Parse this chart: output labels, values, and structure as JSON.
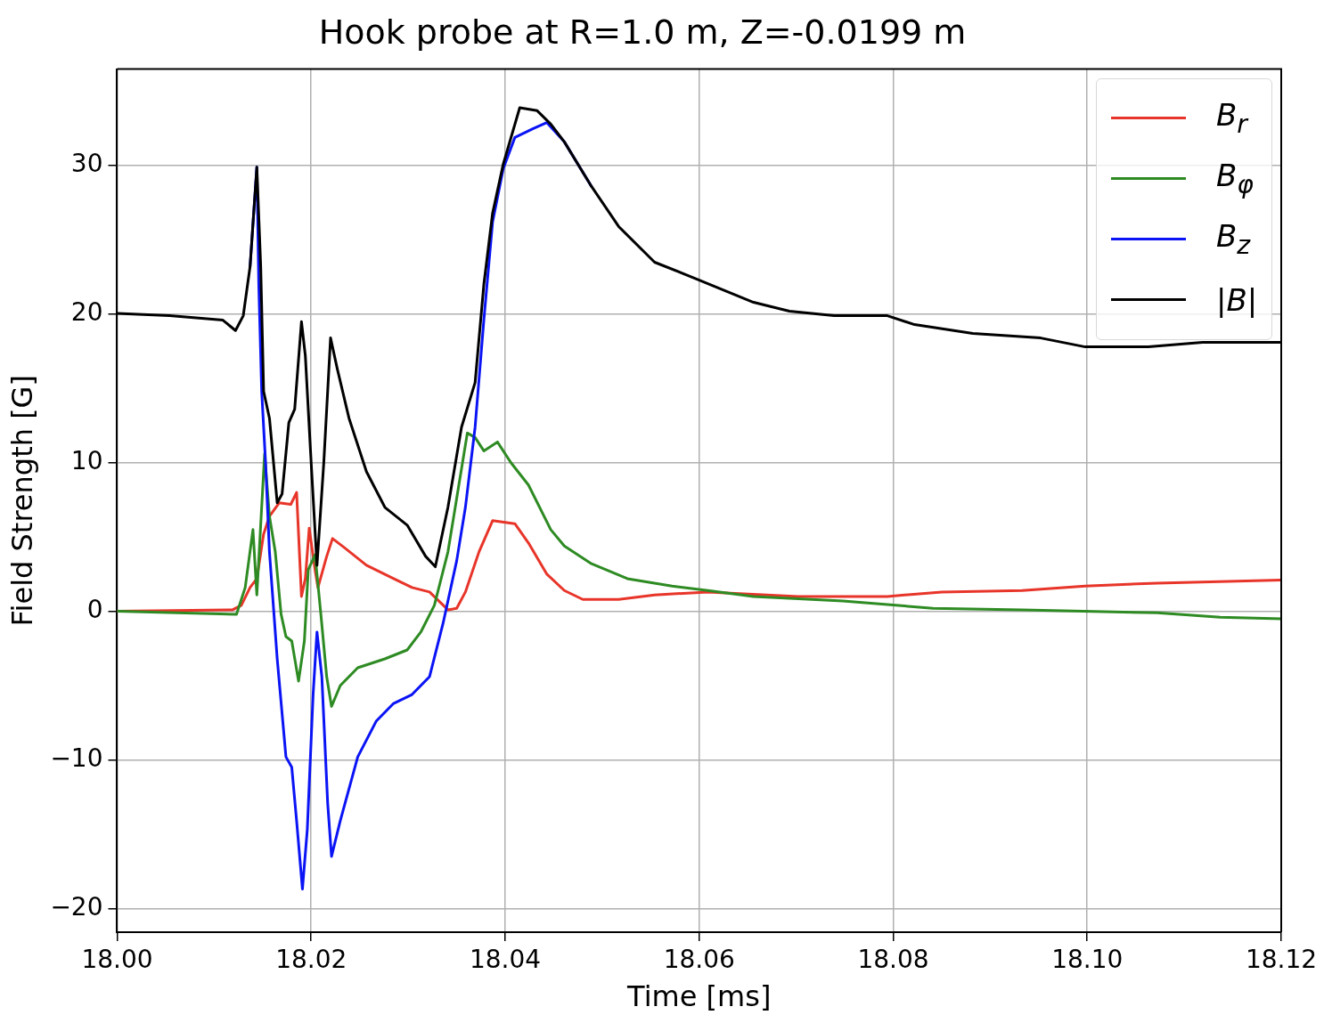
{
  "chart_data": {
    "type": "line",
    "title": "Hook probe at R=1.0 m, Z=-0.0199 m",
    "xlabel": "Time [ms]",
    "ylabel": "Field Strength [G]",
    "xlim": [
      18.0,
      18.12
    ],
    "xticks": [
      {
        "value": 18.0,
        "label": "18.00"
      },
      {
        "value": 18.02,
        "label": "18.02"
      },
      {
        "value": 18.04,
        "label": "18.04"
      },
      {
        "value": 18.06,
        "label": "18.06"
      },
      {
        "value": 18.08,
        "label": "18.08"
      },
      {
        "value": 18.1,
        "label": "18.10"
      },
      {
        "value": 18.12,
        "label": "18.12"
      }
    ],
    "ylim": [
      -21.6,
      36.5
    ],
    "yticks": [
      {
        "value": -20,
        "label": "−20"
      },
      {
        "value": -10,
        "label": "−10"
      },
      0,
      10,
      20,
      30
    ],
    "grid": true,
    "legend": "top right",
    "marker": "none",
    "line_style": "solid",
    "series": [
      {
        "name": "B$_{r}$",
        "color": "#e8352a",
        "x": [
          18.0,
          18.0119,
          18.0128,
          18.0137,
          18.0144,
          18.0151,
          18.0157,
          18.0167,
          18.0179,
          18.0185,
          18.019,
          18.0194,
          18.0198,
          18.0204,
          18.0207,
          18.0216,
          18.0222,
          18.0234,
          18.0257,
          18.0285,
          18.0304,
          18.0322,
          18.0341,
          18.035,
          18.0359,
          18.0373,
          18.0387,
          18.041,
          18.0424,
          18.0443,
          18.0461,
          18.048,
          18.0517,
          18.0554,
          18.0609,
          18.0702,
          18.0794,
          18.085,
          18.0933,
          18.0998,
          18.1072,
          18.12
        ],
        "values": [
          0,
          0.1,
          0.4,
          1.6,
          2.2,
          5.2,
          6.4,
          7.3,
          7.2,
          8.0,
          1.0,
          2.2,
          5.6,
          2.8,
          1.6,
          3.7,
          4.9,
          4.3,
          3.1,
          2.2,
          1.6,
          1.3,
          0.1,
          0.2,
          1.3,
          4.0,
          6.1,
          5.9,
          4.6,
          2.5,
          1.4,
          0.8,
          0.8,
          1.1,
          1.3,
          1.0,
          1.0,
          1.3,
          1.4,
          1.7,
          1.9,
          2.1
        ]
      },
      {
        "name": "B$_{φ}$",
        "color": "#2e8b23",
        "x": [
          18.0,
          18.0123,
          18.0132,
          18.014,
          18.0144,
          18.0152,
          18.0157,
          18.0163,
          18.0169,
          18.0174,
          18.018,
          18.0187,
          18.0193,
          18.0197,
          18.0204,
          18.021,
          18.0216,
          18.0221,
          18.023,
          18.0248,
          18.0276,
          18.0299,
          18.0313,
          18.0327,
          18.0341,
          18.035,
          18.0361,
          18.0369,
          18.0378,
          18.0392,
          18.0406,
          18.0424,
          18.0447,
          18.0461,
          18.0489,
          18.0526,
          18.0572,
          18.0609,
          18.0656,
          18.0748,
          18.0841,
          18.0933,
          18.1072,
          18.1137,
          18.12
        ],
        "values": [
          0,
          -0.2,
          1.6,
          5.5,
          1.1,
          10.6,
          6.4,
          4.0,
          -0.2,
          -1.7,
          -2.0,
          -4.7,
          -2.0,
          2.8,
          3.8,
          -0.2,
          -4.4,
          -6.4,
          -5.0,
          -3.8,
          -3.2,
          -2.6,
          -1.4,
          0.4,
          4.0,
          7.6,
          12.0,
          11.7,
          10.8,
          11.4,
          10.0,
          8.5,
          5.5,
          4.4,
          3.2,
          2.2,
          1.7,
          1.4,
          1.0,
          0.7,
          0.2,
          0.1,
          -0.1,
          -0.4,
          -0.5
        ]
      },
      {
        "name": "B$_{z}$",
        "color": "#0a14f5",
        "x": [
          18.0137,
          18.0144,
          18.0146,
          18.0149,
          18.0153,
          18.0157,
          18.0165,
          18.0174,
          18.018,
          18.0185,
          18.0191,
          18.0196,
          18.0202,
          18.0206,
          18.0211,
          18.0217,
          18.0221,
          18.023,
          18.0248,
          18.0267,
          18.0285,
          18.0304,
          18.0322,
          18.0336,
          18.035,
          18.0359,
          18.0369,
          18.0378,
          18.0387,
          18.0398,
          18.041,
          18.0429,
          18.0443,
          18.0461,
          18.0489
        ],
        "values": [
          23.2,
          29.9,
          22.0,
          14.8,
          10.0,
          4.0,
          -3.2,
          -9.8,
          -10.5,
          -14.1,
          -18.7,
          -14.7,
          -5.6,
          -1.4,
          -4.4,
          -12.9,
          -16.5,
          -14.1,
          -9.8,
          -7.4,
          -6.2,
          -5.6,
          -4.4,
          -0.8,
          3.4,
          7.0,
          12.4,
          19.6,
          26.2,
          29.8,
          31.9,
          32.5,
          32.9,
          31.6,
          28.6
        ]
      },
      {
        "name": "|B|",
        "color": "#000000",
        "x": [
          18.0,
          18.0054,
          18.0109,
          18.0122,
          18.013,
          18.0137,
          18.0144,
          18.0148,
          18.0151,
          18.0157,
          18.0165,
          18.017,
          18.0177,
          18.0183,
          18.019,
          18.0194,
          18.02,
          18.0206,
          18.0213,
          18.022,
          18.0227,
          18.0239,
          18.0257,
          18.0276,
          18.0299,
          18.0318,
          18.0328,
          18.0341,
          18.0355,
          18.0369,
          18.0378,
          18.0387,
          18.0398,
          18.0415,
          18.0433,
          18.0447,
          18.0461,
          18.0489,
          18.0517,
          18.0554,
          18.06,
          18.0656,
          18.0693,
          18.0739,
          18.0794,
          18.0822,
          18.0882,
          18.0952,
          18.0998,
          18.1063,
          18.1119,
          18.12
        ],
        "values": [
          20.06,
          19.9,
          19.6,
          18.9,
          19.9,
          23.2,
          29.9,
          23.2,
          14.8,
          13.0,
          7.3,
          7.9,
          12.7,
          13.6,
          19.5,
          17.2,
          10.0,
          3.1,
          10.0,
          18.4,
          16.3,
          13.0,
          9.4,
          7.0,
          5.8,
          3.7,
          3.0,
          7.0,
          12.4,
          15.4,
          22.0,
          26.8,
          30.1,
          33.9,
          33.7,
          32.8,
          31.6,
          28.6,
          25.9,
          23.5,
          22.3,
          20.8,
          20.2,
          19.9,
          19.9,
          19.3,
          18.7,
          18.4,
          17.8,
          17.8,
          18.1,
          18.1
        ]
      }
    ]
  }
}
